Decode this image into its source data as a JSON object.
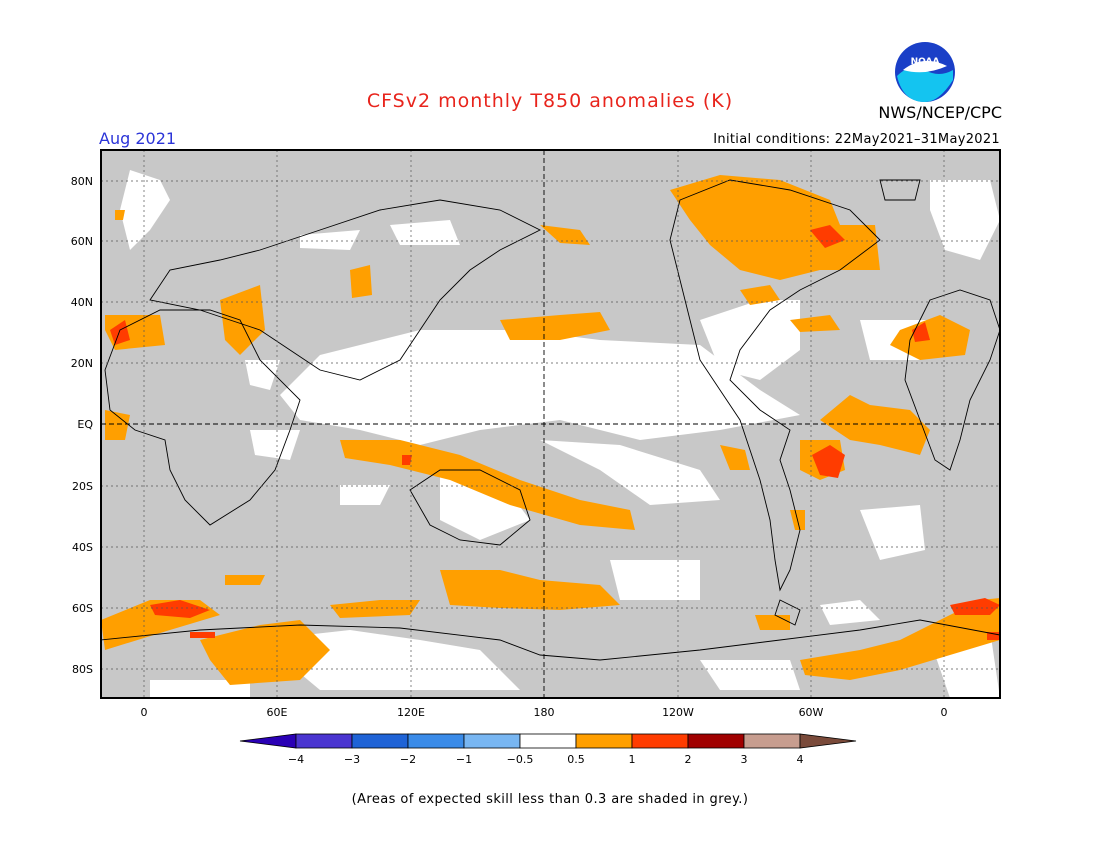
{
  "header": {
    "title": "CFSv2 monthly T850 anomalies (K)",
    "agency": "NWS/NCEP/CPC",
    "valid_month": "Aug 2021",
    "initial_conditions": "Initial conditions: 22May2021–31May2021",
    "logo_text": "NOAA"
  },
  "map": {
    "lat_labels": [
      "80N",
      "60N",
      "40N",
      "20N",
      "EQ",
      "20S",
      "40S",
      "60S",
      "80S"
    ],
    "lon_labels": [
      "0",
      "60E",
      "120E",
      "180",
      "120W",
      "60W",
      "0"
    ]
  },
  "colorbar": {
    "tick_labels": [
      "−4",
      "−3",
      "−2",
      "−1",
      "−0.5",
      "0.5",
      "1",
      "2",
      "3",
      "4"
    ],
    "colors": [
      "#2a00b5",
      "#4a35d0",
      "#1f63d6",
      "#3a8be8",
      "#78b6f2",
      "#ffffff",
      "#ff9f00",
      "#ff3c00",
      "#a00000",
      "#c79d8f",
      "#7a4a3a"
    ]
  },
  "footnote": "(Areas of expected skill less than 0.3 are shaded in grey.)"
}
